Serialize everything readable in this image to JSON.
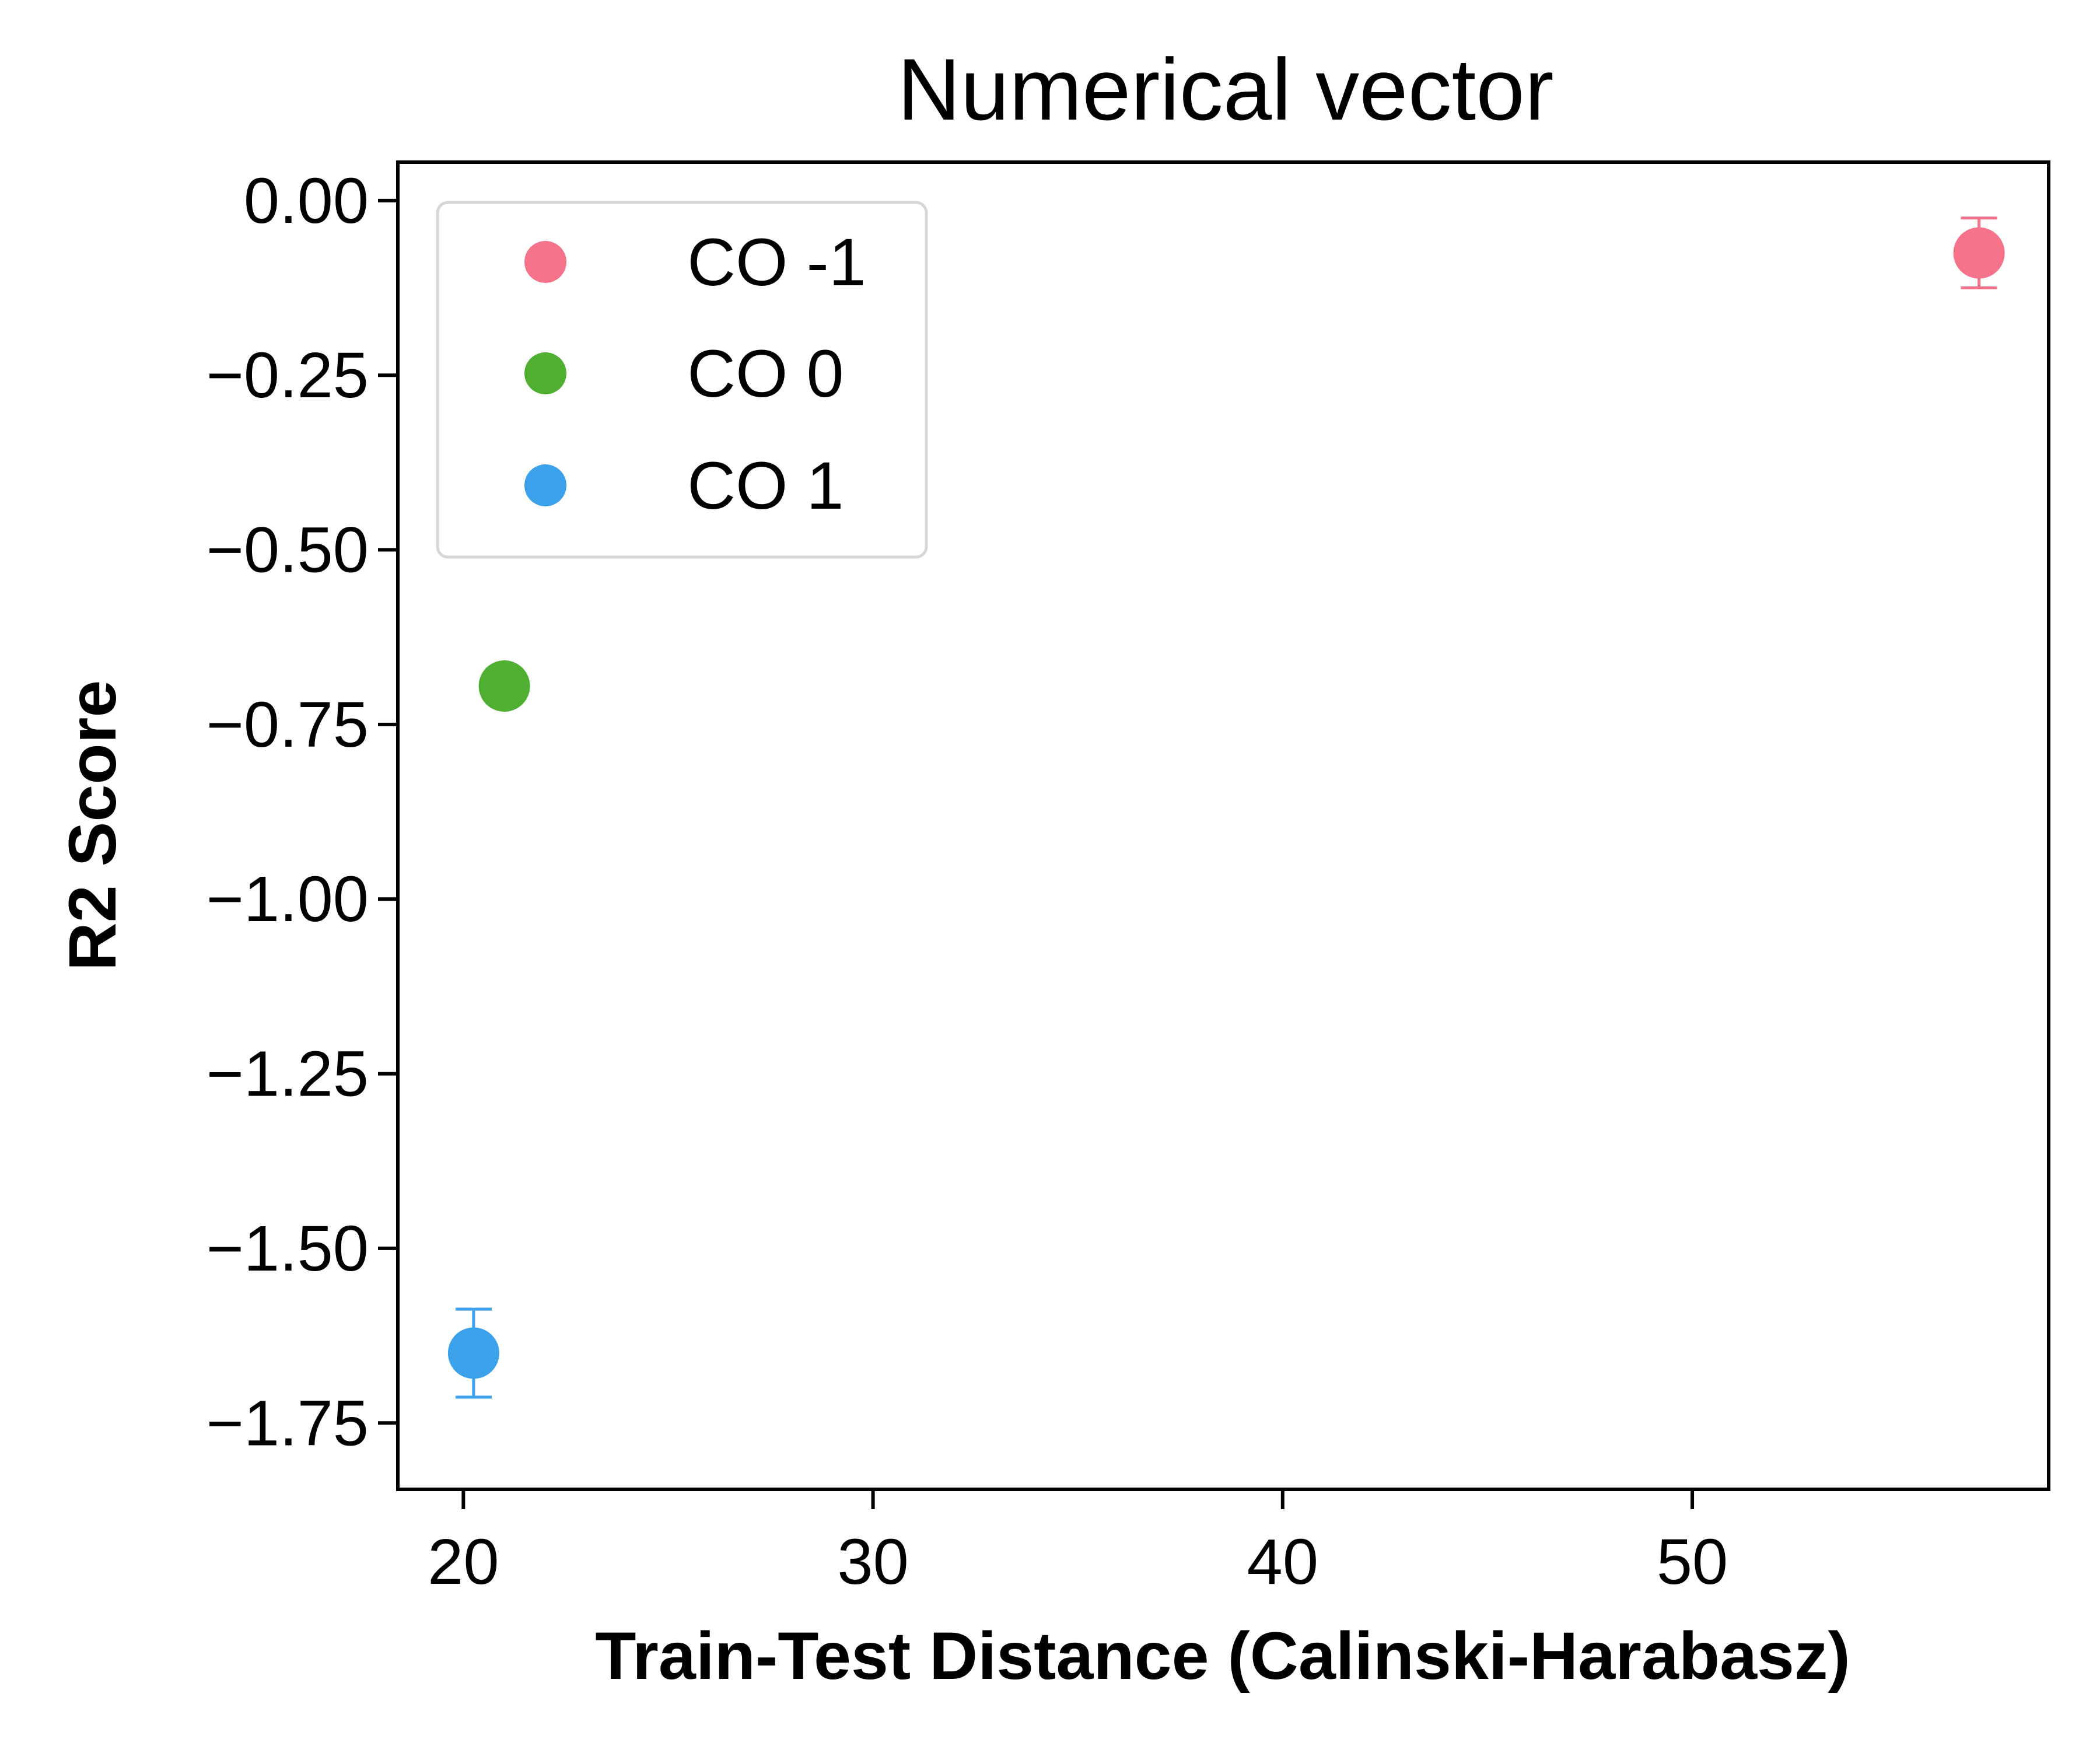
{
  "chart_data": {
    "type": "scatter",
    "title": "Numerical vector",
    "xlabel": "Train-Test Distance (Calinski-Harabasz)",
    "ylabel": "R2 Score",
    "xlim": [
      18.4,
      58.7
    ],
    "ylim": [
      -1.845,
      0.055
    ],
    "x_ticks": [
      20,
      30,
      40,
      50
    ],
    "x_tick_labels": [
      "20",
      "30",
      "40",
      "50"
    ],
    "y_ticks": [
      0.0,
      -0.25,
      -0.5,
      -0.75,
      -1.0,
      -1.25,
      -1.5,
      -1.75
    ],
    "y_tick_labels": [
      "0.00",
      "−0.25",
      "−0.50",
      "−0.75",
      "−1.00",
      "−1.25",
      "−1.50",
      "−1.75"
    ],
    "grid": false,
    "legend_position": "upper-left",
    "series": [
      {
        "name": "CO -1",
        "color": "#f5738a",
        "x": 57.0,
        "y": -0.075,
        "yerr": 0.05
      },
      {
        "name": "CO 0",
        "color": "#4faf30",
        "x": 21.0,
        "y": -0.695,
        "yerr": 0.012
      },
      {
        "name": "CO 1",
        "color": "#3ba1ea",
        "x": 20.25,
        "y": -1.65,
        "yerr": 0.063
      }
    ]
  }
}
